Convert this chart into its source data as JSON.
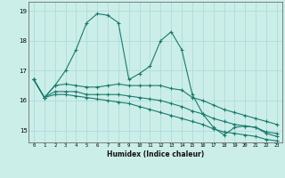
{
  "xlabel": "Humidex (Indice chaleur)",
  "bg_color": "#cceee8",
  "grid_color": "#aadddd",
  "line_color": "#1a7a6e",
  "x_values": [
    0,
    1,
    2,
    3,
    4,
    5,
    6,
    7,
    8,
    9,
    10,
    11,
    12,
    13,
    14,
    15,
    16,
    17,
    18,
    19,
    20,
    21,
    22,
    23
  ],
  "series1": [
    16.7,
    16.1,
    16.5,
    17.0,
    17.7,
    18.6,
    18.9,
    18.85,
    18.6,
    16.7,
    16.9,
    17.15,
    18.0,
    18.3,
    17.7,
    16.2,
    15.55,
    15.1,
    14.85,
    15.1,
    15.15,
    15.1,
    14.9,
    14.8
  ],
  "series2": [
    16.7,
    16.1,
    16.5,
    16.55,
    16.5,
    16.45,
    16.45,
    16.5,
    16.55,
    16.5,
    16.5,
    16.5,
    16.5,
    16.4,
    16.35,
    16.1,
    16.0,
    15.85,
    15.7,
    15.6,
    15.5,
    15.4,
    15.3,
    15.2
  ],
  "series3": [
    16.7,
    16.1,
    16.3,
    16.3,
    16.3,
    16.2,
    16.2,
    16.2,
    16.2,
    16.15,
    16.1,
    16.05,
    16.0,
    15.9,
    15.8,
    15.65,
    15.55,
    15.4,
    15.3,
    15.2,
    15.15,
    15.1,
    14.95,
    14.9
  ],
  "series4": [
    16.7,
    16.1,
    16.2,
    16.2,
    16.15,
    16.1,
    16.05,
    16.0,
    15.95,
    15.9,
    15.8,
    15.7,
    15.6,
    15.5,
    15.4,
    15.3,
    15.2,
    15.05,
    14.95,
    14.9,
    14.85,
    14.8,
    14.7,
    14.65
  ],
  "ylim": [
    14.6,
    19.3
  ],
  "yticks": [
    15,
    16,
    17,
    18,
    19
  ],
  "xticks": [
    0,
    1,
    2,
    3,
    4,
    5,
    6,
    7,
    8,
    9,
    10,
    11,
    12,
    13,
    14,
    15,
    16,
    17,
    18,
    19,
    20,
    21,
    22,
    23
  ]
}
